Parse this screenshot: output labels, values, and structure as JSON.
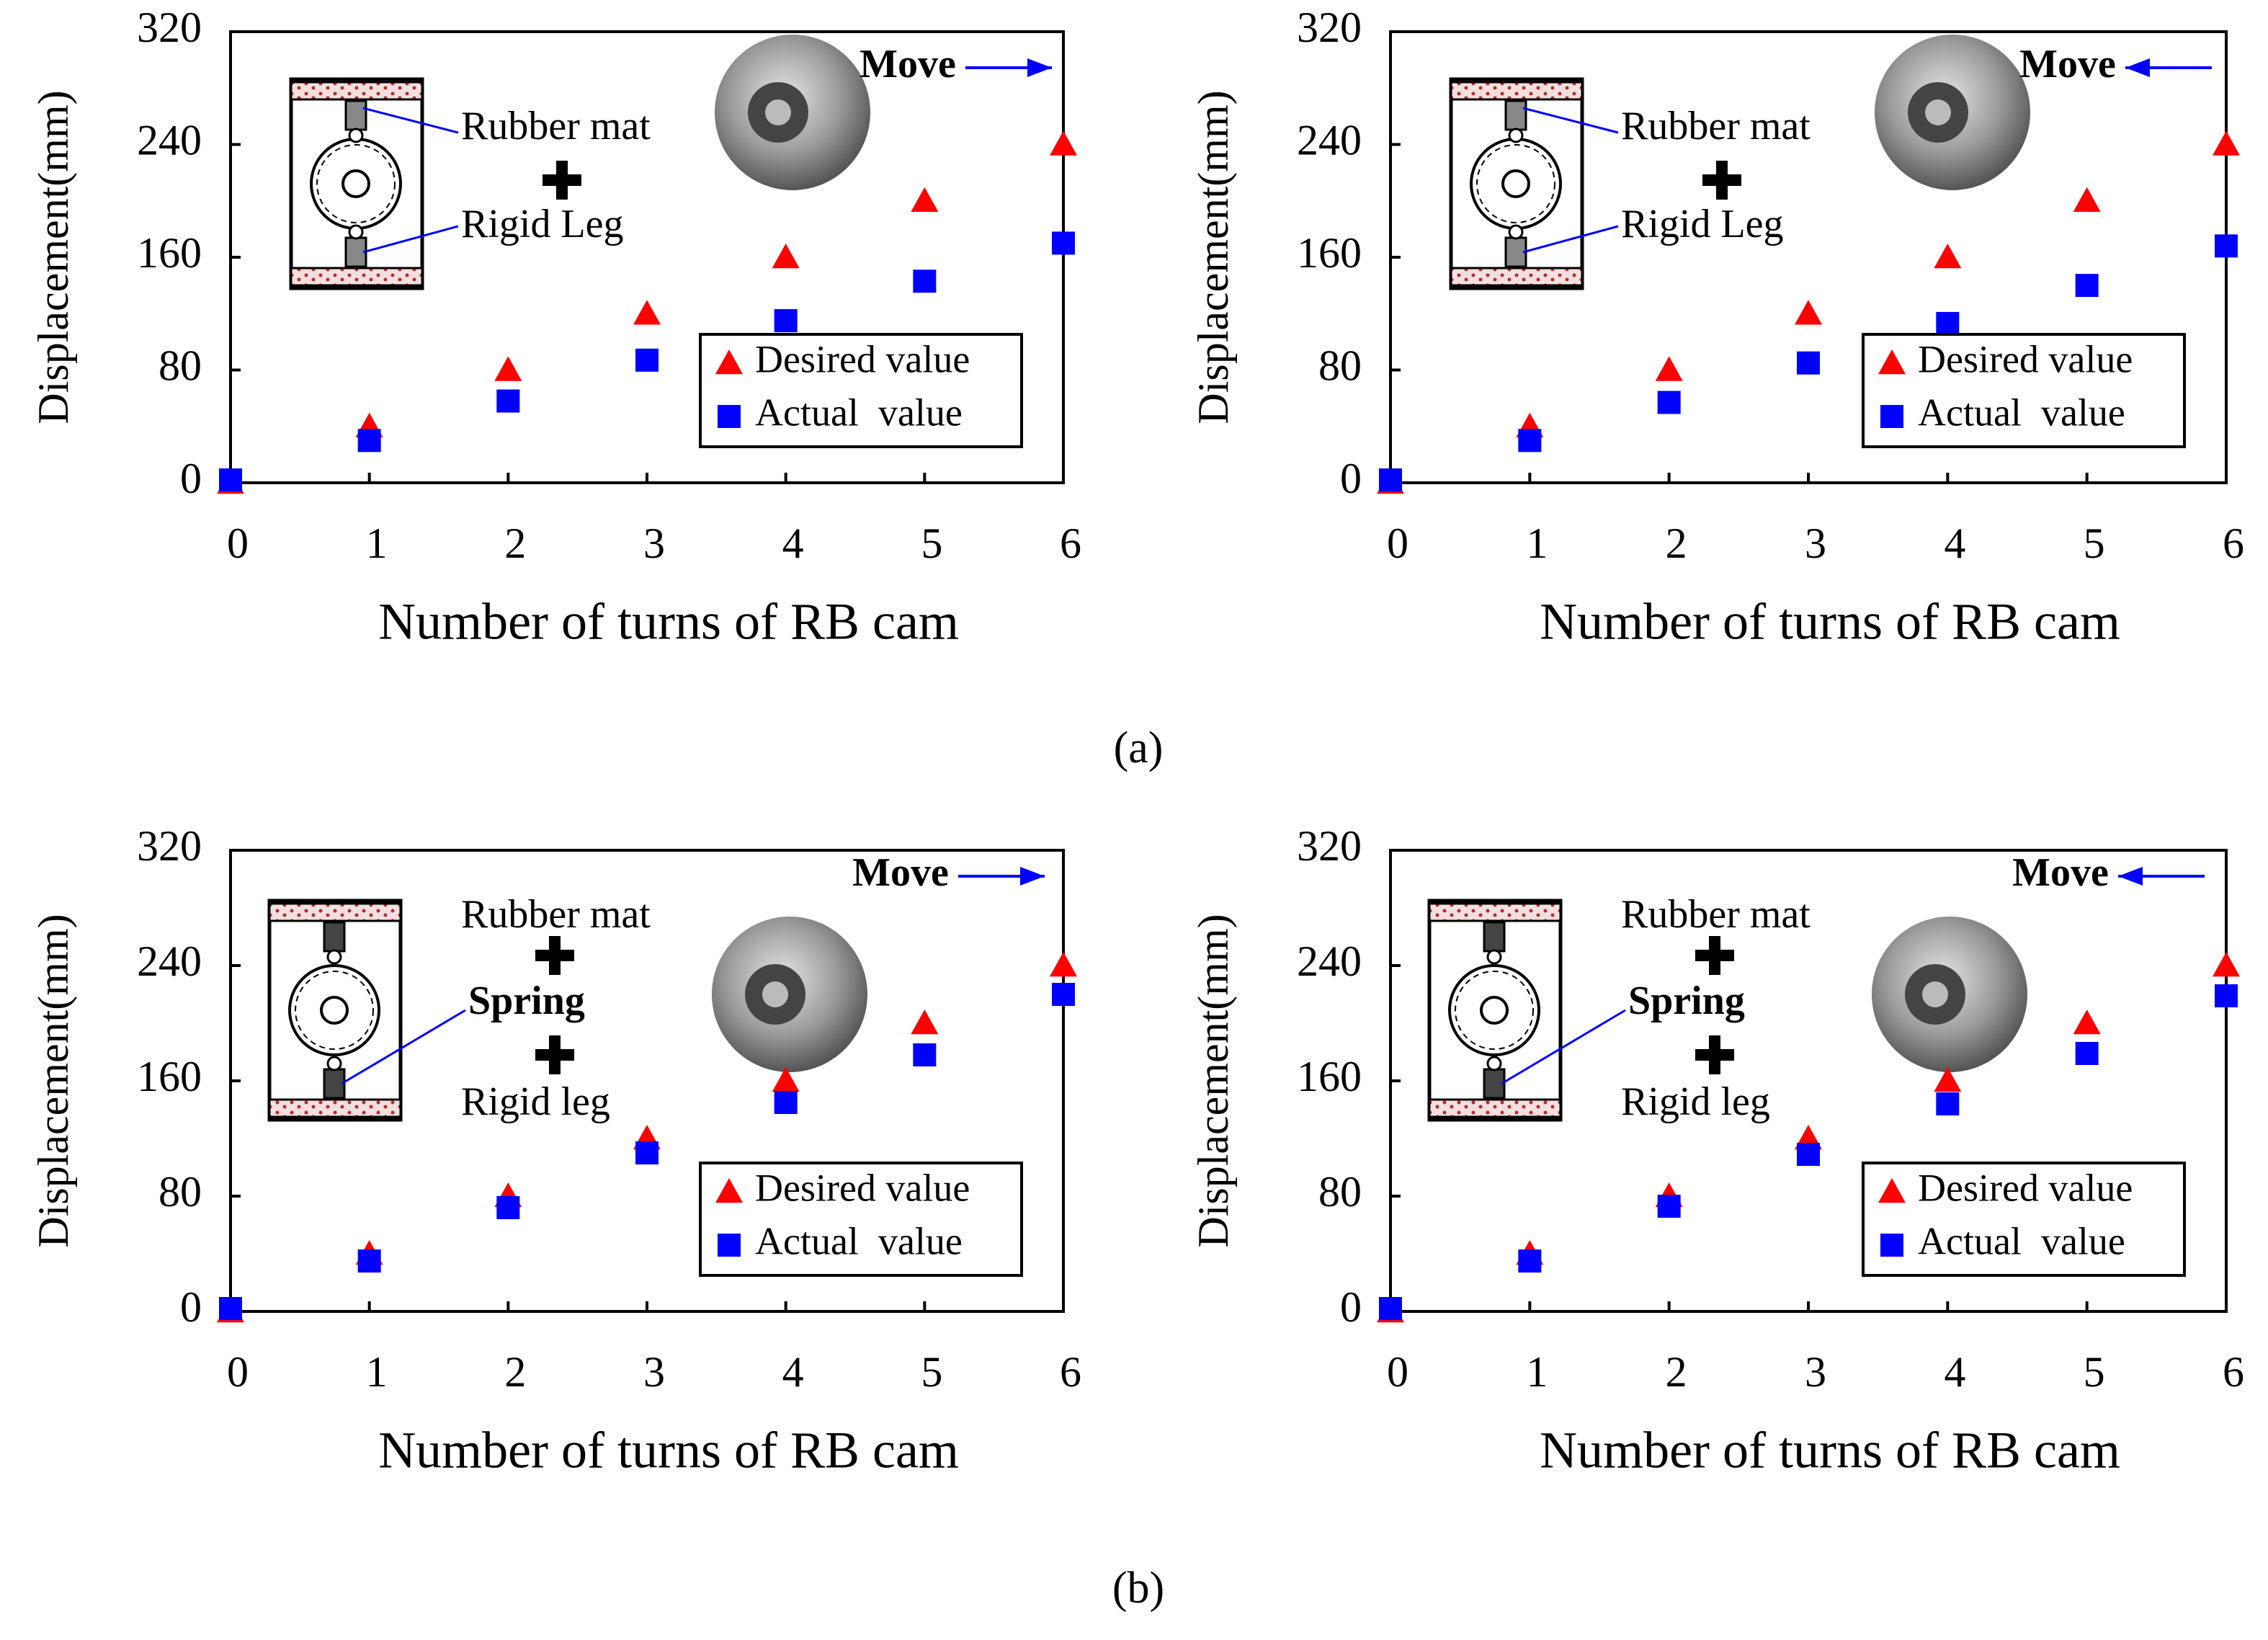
{
  "chart_data": [
    {
      "type": "scatter",
      "xlabel": "Number of turns of RB  cam",
      "ylabel": "Displacement(mm)",
      "x": [
        0,
        1,
        2,
        3,
        4,
        5,
        6
      ],
      "series": [
        {
          "name": "Desired value",
          "color": "#ff0000",
          "marker": "triangle",
          "values": [
            0,
            40,
            80,
            120,
            160,
            200,
            240
          ]
        },
        {
          "name": "Actual  value",
          "color": "#0000ff",
          "marker": "square",
          "values": [
            2,
            30,
            58,
            87,
            115,
            143,
            170
          ]
        }
      ],
      "xlim": [
        0,
        6
      ],
      "xticks": [
        0,
        1,
        2,
        3,
        4,
        5,
        6
      ],
      "ylim": [
        0,
        320
      ],
      "yticks": [
        0,
        80,
        160,
        240,
        320
      ],
      "legend": "lower right",
      "annotations": [
        "Move",
        "Rubber mat",
        "Rigid Leg"
      ]
    },
    {
      "type": "scatter",
      "xlabel": "Number of turns of RB  cam",
      "ylabel": "Displacement(mm)",
      "x": [
        0,
        1,
        2,
        3,
        4,
        5,
        6
      ],
      "series": [
        {
          "name": "Desired value",
          "color": "#ff0000",
          "marker": "triangle",
          "values": [
            0,
            40,
            80,
            120,
            160,
            200,
            240
          ]
        },
        {
          "name": "Actual  value",
          "color": "#0000ff",
          "marker": "square",
          "values": [
            2,
            30,
            57,
            85,
            113,
            140,
            168
          ]
        }
      ],
      "xlim": [
        0,
        6
      ],
      "xticks": [
        0,
        1,
        2,
        3,
        4,
        5,
        6
      ],
      "ylim": [
        0,
        320
      ],
      "yticks": [
        0,
        80,
        160,
        240,
        320
      ],
      "legend": "lower right",
      "annotations": [
        "Move",
        "Rubber mat",
        "Rigid Leg"
      ]
    },
    {
      "type": "scatter",
      "xlabel": "Number of turns of RB  cam",
      "ylabel": "Displacement(mm)",
      "x": [
        0,
        1,
        2,
        3,
        4,
        5,
        6
      ],
      "series": [
        {
          "name": "Desired value",
          "color": "#ff0000",
          "marker": "triangle",
          "values": [
            0,
            40,
            80,
            120,
            160,
            200,
            240
          ]
        },
        {
          "name": "Actual  value",
          "color": "#0000ff",
          "marker": "square",
          "values": [
            2,
            35,
            72,
            110,
            145,
            178,
            220
          ]
        }
      ],
      "xlim": [
        0,
        6
      ],
      "xticks": [
        0,
        1,
        2,
        3,
        4,
        5,
        6
      ],
      "ylim": [
        0,
        320
      ],
      "yticks": [
        0,
        80,
        160,
        240,
        320
      ],
      "legend": "lower right",
      "annotations": [
        "Move",
        "Rubber mat",
        "Spring",
        "Rigid leg"
      ]
    },
    {
      "type": "scatter",
      "xlabel": "Number of turns of RB  cam",
      "ylabel": "Displacement(mm)",
      "x": [
        0,
        1,
        2,
        3,
        4,
        5,
        6
      ],
      "series": [
        {
          "name": "Desired value",
          "color": "#ff0000",
          "marker": "triangle",
          "values": [
            0,
            40,
            80,
            120,
            160,
            200,
            240
          ]
        },
        {
          "name": "Actual  value",
          "color": "#0000ff",
          "marker": "square",
          "values": [
            2,
            35,
            73,
            109,
            144,
            179,
            219
          ]
        }
      ],
      "xlim": [
        0,
        6
      ],
      "xticks": [
        0,
        1,
        2,
        3,
        4,
        5,
        6
      ],
      "ylim": [
        0,
        320
      ],
      "yticks": [
        0,
        80,
        160,
        240,
        320
      ],
      "legend": "lower right",
      "annotations": [
        "Move",
        "Rubber mat",
        "Spring",
        "Rigid leg"
      ]
    }
  ],
  "panel_labels": [
    "(a)",
    "(b)"
  ]
}
